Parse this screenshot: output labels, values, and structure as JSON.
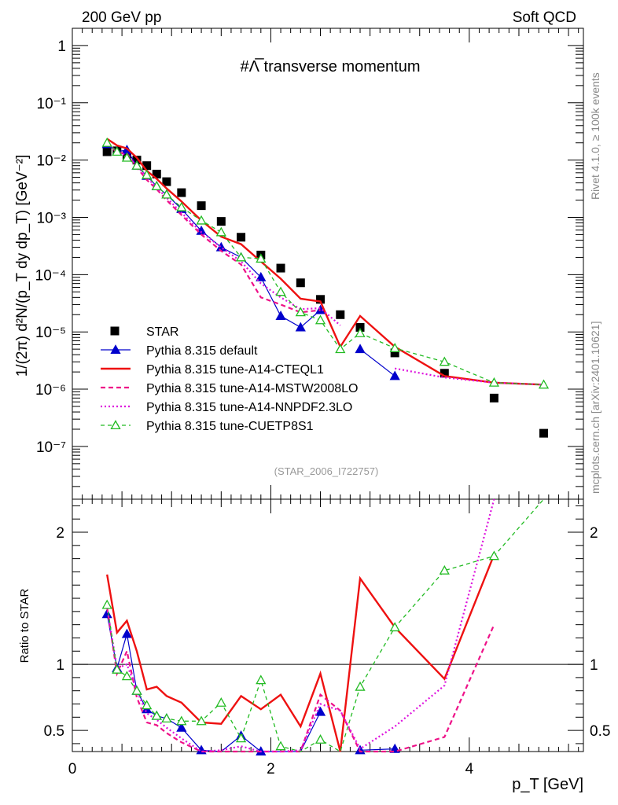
{
  "header": {
    "left": "200 GeV pp",
    "right": "Soft QCD"
  },
  "side": {
    "rivet": "Rivet 4.1.0, ≥ 100k events",
    "mcplots": "mcplots.cern.ch [arXiv:2401.10621]"
  },
  "chart_data": [
    {
      "type": "scatter",
      "panel": "main",
      "title": "#Λ̅ transverse momentum",
      "watermark": "(STAR_2006_I722757)",
      "xlabel": "p_T [GeV]",
      "ylabel": "1/(2π)  d²N/(p_T dy dp_T) [GeV⁻²]",
      "yscale": "log",
      "xlim": [
        0,
        5.15
      ],
      "ylim": [
        1.2e-08,
        2.0
      ],
      "yticks": [
        1e-07,
        1e-06,
        1e-05,
        0.0001,
        0.001,
        0.01,
        0.1,
        1
      ],
      "ytick_labels": [
        "10⁻⁷",
        "10⁻⁶",
        "10⁻⁵",
        "10⁻⁴",
        "10⁻³",
        "10⁻²",
        "10⁻¹",
        "1"
      ],
      "x": [
        0.35,
        0.45,
        0.55,
        0.65,
        0.75,
        0.85,
        0.95,
        1.1,
        1.3,
        1.5,
        1.7,
        1.9,
        2.1,
        2.3,
        2.5,
        2.7,
        2.9,
        3.25,
        3.75,
        4.25,
        4.75
      ],
      "series": [
        {
          "name": "STAR",
          "style": "square-black",
          "values": [
            0.014,
            0.0145,
            0.012,
            0.01,
            0.008,
            0.0057,
            0.0042,
            0.0027,
            0.0016,
            0.00085,
            0.00045,
            0.00022,
            0.00013,
            7.2e-05,
            3.7e-05,
            2e-05,
            1.2e-05,
            4.3e-06,
            1.9e-06,
            7e-07,
            1.7e-07
          ]
        },
        {
          "name": "Pythia 8.315 default",
          "style": "blue-triangle",
          "values": [
            0.019,
            0.014,
            0.015,
            0.008,
            0.0053,
            0.0035,
            0.0025,
            0.0014,
            0.00058,
            0.0003,
            0.0002,
            9e-05,
            1.9e-05,
            1.2e-05,
            2.4e-05,
            null,
            5e-06,
            1.7e-06,
            null,
            null,
            null
          ]
        },
        {
          "name": "Pythia 8.315 tune-A14-CTEQL1",
          "style": "red-solid",
          "values": [
            0.0235,
            0.018,
            0.016,
            0.011,
            0.0065,
            0.0047,
            0.0032,
            0.0019,
            0.00088,
            0.00046,
            0.00034,
            0.00017,
            8.5e-05,
            3.8e-05,
            3.4e-05,
            5.5e-06,
            1.9e-05,
            5.5e-06,
            1.7e-06,
            1.3e-06,
            1.2e-06
          ]
        },
        {
          "name": "Pythia 8.315 tune-A14-MSTW2008LO",
          "style": "magenta-dashed",
          "values": [
            0.02,
            0.0135,
            0.013,
            0.0075,
            0.0045,
            0.0031,
            0.002,
            0.0011,
            0.0005,
            0.00026,
            0.00015,
            4e-05,
            3e-05,
            2.2e-05,
            2.4e-05,
            null,
            null,
            null,
            null,
            null,
            1.2e-06
          ]
        },
        {
          "name": "Pythia 8.315 tune-A14-NNPDF2.3LO",
          "style": "magenta-dotted",
          "values": [
            0.02,
            0.014,
            0.012,
            0.008,
            0.005,
            0.0033,
            0.0022,
            0.0012,
            0.00055,
            0.0003,
            0.00017,
            7e-05,
            4e-05,
            2.5e-05,
            2.6e-05,
            1.3e-05,
            null,
            2.3e-06,
            1.6e-06,
            1.3e-06,
            1.2e-06
          ]
        },
        {
          "name": "Pythia 8.315 tune-CUETP8S1",
          "style": "green-open-triangle",
          "values": [
            0.02,
            0.014,
            0.011,
            0.008,
            0.0055,
            0.0035,
            0.0025,
            0.0015,
            0.00088,
            0.00055,
            0.0002,
            0.00019,
            5e-05,
            2.2e-05,
            1.6e-05,
            5e-06,
            9.5e-06,
            5.2e-06,
            3e-06,
            1.3e-06,
            1.2e-06
          ]
        }
      ],
      "legend": [
        "STAR",
        "Pythia 8.315 default",
        "Pythia 8.315 tune-A14-CTEQL1",
        "Pythia 8.315 tune-A14-MSTW2008LO",
        "Pythia 8.315 tune-A14-NNPDF2.3LO",
        "Pythia 8.315 tune-CUETP8S1"
      ]
    },
    {
      "type": "line",
      "panel": "ratio",
      "ylabel": "Ratio to STAR",
      "xlabel": "p_T [GeV]",
      "xlim": [
        0,
        5.15
      ],
      "ylim": [
        0.34,
        2.25
      ],
      "xticks": [
        0,
        2,
        4
      ],
      "xtick_labels": [
        "0",
        "2",
        "4"
      ],
      "yticks": [
        0.5,
        1,
        2
      ],
      "ytick_labels": [
        "0.5",
        "1",
        "2"
      ],
      "x": [
        0.35,
        0.45,
        0.55,
        0.65,
        0.75,
        0.85,
        0.95,
        1.1,
        1.3,
        1.5,
        1.7,
        1.9,
        2.1,
        2.3,
        2.5,
        2.7,
        2.9,
        3.25,
        3.75,
        4.25,
        4.75
      ],
      "series": [
        {
          "name": "Pythia 8.315 default",
          "values": [
            1.38,
            0.97,
            1.23,
            0.8,
            0.66,
            0.61,
            0.59,
            0.52,
            0.35,
            0.3,
            0.46,
            0.34,
            0.1,
            0.16,
            0.64,
            null,
            0.35,
            0.36,
            null,
            null,
            null
          ]
        },
        {
          "name": "Pythia 8.315 tune-A14-CTEQL1",
          "values": [
            1.68,
            1.24,
            1.33,
            1.1,
            0.81,
            0.83,
            0.76,
            0.71,
            0.56,
            0.55,
            0.76,
            0.66,
            0.77,
            0.53,
            0.93,
            0.27,
            1.65,
            1.28,
            0.89,
            1.83,
            null
          ]
        },
        {
          "name": "Pythia 8.315 tune-A14-MSTW2008LO",
          "values": [
            1.43,
            0.93,
            1.1,
            0.75,
            0.56,
            0.54,
            0.48,
            0.41,
            0.31,
            0.31,
            0.33,
            0.18,
            0.22,
            0.31,
            0.77,
            0.65,
            0.27,
            0.32,
            0.45,
            1.3,
            null
          ]
        },
        {
          "name": "Pythia 8.315 tune-A14-NNPDF2.3LO",
          "values": [
            1.43,
            0.97,
            1.0,
            0.8,
            0.63,
            0.58,
            0.52,
            0.44,
            0.34,
            0.35,
            0.38,
            0.32,
            0.31,
            0.35,
            0.7,
            0.65,
            0.36,
            0.53,
            0.84,
            2.3,
            null
          ]
        },
        {
          "name": "Pythia 8.315 tune-CUETP8S1",
          "values": [
            1.45,
            0.96,
            0.91,
            0.8,
            0.69,
            0.61,
            0.59,
            0.57,
            0.57,
            0.71,
            0.44,
            0.88,
            0.38,
            0.3,
            0.43,
            0.25,
            0.83,
            1.28,
            1.71,
            1.82,
            2.3
          ]
        }
      ]
    }
  ]
}
